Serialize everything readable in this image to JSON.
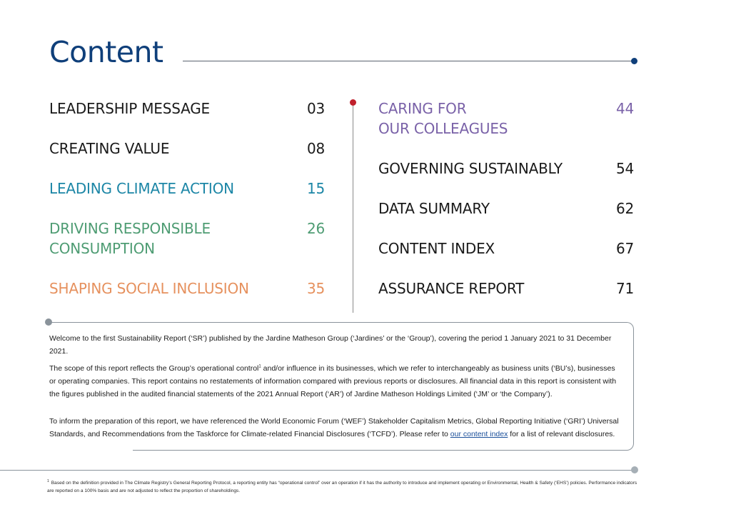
{
  "title": "Content",
  "toc": {
    "left": [
      {
        "label": "LEADERSHIP MESSAGE",
        "page": "03",
        "color": "#1a1a1a"
      },
      {
        "label": "CREATING VALUE",
        "page": "08",
        "color": "#1a1a1a"
      },
      {
        "label": "LEADING CLIMATE ACTION",
        "page": "15",
        "color": "#1c86a6"
      },
      {
        "label_line1": "DRIVING RESPONSIBLE",
        "label_line2": "CONSUMPTION",
        "page": "26",
        "color": "#4e9c73"
      },
      {
        "label": "SHAPING SOCIAL INCLUSION",
        "page": "35",
        "color": "#e6915e"
      }
    ],
    "right": [
      {
        "label_line1": "CARING FOR",
        "label_line2": "OUR COLLEAGUES",
        "page": "44",
        "color": "#7a62a8"
      },
      {
        "label": "GOVERNING SUSTAINABLY",
        "page": "54",
        "color": "#1a1a1a"
      },
      {
        "label": "DATA SUMMARY",
        "page": "62",
        "color": "#1a1a1a"
      },
      {
        "label": "CONTENT INDEX",
        "page": "67",
        "color": "#1a1a1a"
      },
      {
        "label": "ASSURANCE REPORT",
        "page": "71",
        "color": "#1a1a1a"
      }
    ]
  },
  "intro": {
    "p1": "Welcome to the first Sustainability Report (‘SR’) published by the Jardine Matheson Group (‘Jardines’ or the ‘Group’), covering the period 1 January 2021 to 31 December 2021.",
    "p2_before_sup": "The scope of this report reflects the Group’s operational control",
    "p2_sup": "1",
    "p2_after_sup": " and/or influence in its businesses, which we refer to interchangeably as business units (‘BU’s), businesses or operating companies. This report contains no restatements of information compared with previous reports or disclosures. All financial data in this report is consistent with the figures published in the audited financial statements of the 2021 Annual Report (‘AR’) of Jardine Matheson Holdings Limited (‘JM’ or ‘the Company’).",
    "p3_before_link": "To inform the preparation of this report, we have referenced the World Economic Forum (‘WEF’) Stakeholder Capitalism Metrics, Global Reporting Initiative (‘GRI’) Universal Standards, and Recommendations from the Taskforce for Climate-related Financial Disclosures (‘TCFD’). Please refer to ",
    "p3_link": "our content index",
    "p3_after_link": " for a list of relevant disclosures."
  },
  "footnote": {
    "marker": "1",
    "text": "Based on the definition provided in The Climate Registry’s General Reporting Protocol, a reporting entity has “operational control” over an operation if it has the authority to introduce and implement operating or Environmental, Health & Safety (‘EHS’) policies. Performance indicators are reported on a 100% basis and are not adjusted to reflect the proportion of shareholdings."
  },
  "colors": {
    "title": "#0f3f7a",
    "climate": "#1c86a6",
    "consumption": "#4e9c73",
    "social": "#e6915e",
    "colleagues": "#7a62a8",
    "accent_dot": "#c0202c",
    "link": "#1a4f9a"
  }
}
